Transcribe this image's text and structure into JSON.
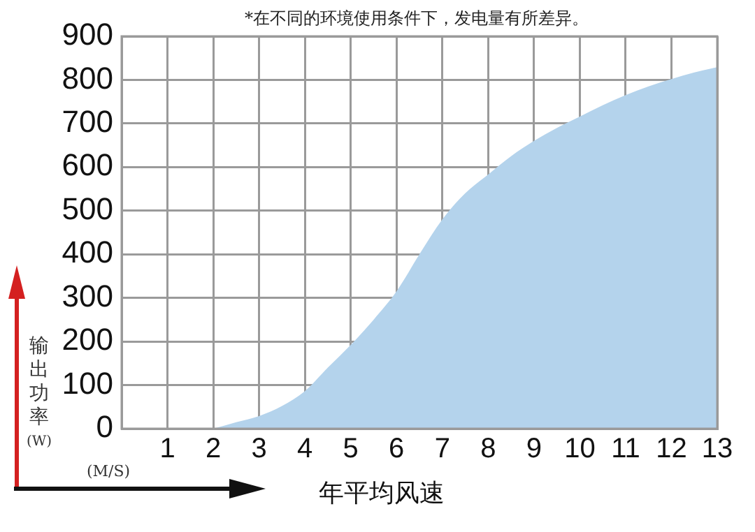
{
  "chart_data": {
    "type": "area",
    "annotations": [
      "*在不同的环境使用条件下，发电量有所差异。",
      "(M/S)"
    ],
    "xlabel": "年平均风速",
    "ylabel": "输出功率(W)",
    "x": [
      2,
      2.5,
      3,
      3.5,
      4,
      4.5,
      5,
      5.5,
      6,
      6.5,
      7,
      7.5,
      8,
      8.5,
      9,
      9.5,
      10,
      10.5,
      11,
      11.5,
      12,
      12.5,
      13
    ],
    "series": [
      {
        "color": "#b4d3ec",
        "values": [
          0,
          15,
          29,
          52,
          86,
          140,
          192,
          250,
          315,
          400,
          480,
          540,
          583,
          625,
          660,
          690,
          716,
          742,
          765,
          785,
          802,
          817,
          829
        ]
      }
    ],
    "xlim": [
      0,
      13
    ],
    "xticks": [
      1,
      2,
      3,
      4,
      5,
      6,
      7,
      8,
      9,
      10,
      11,
      12,
      13
    ],
    "ylim": [
      0,
      900
    ],
    "yticks": [
      0,
      100,
      200,
      300,
      400,
      500,
      600,
      700,
      800,
      900
    ],
    "grid": true,
    "legend": false
  }
}
